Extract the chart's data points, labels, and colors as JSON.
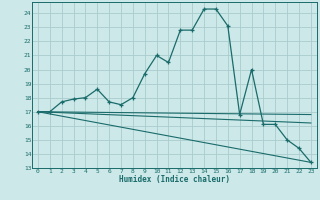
{
  "xlabel": "Humidex (Indice chaleur)",
  "background_color": "#cce8e8",
  "grid_color": "#aacccc",
  "line_color": "#1a6b6b",
  "xlim": [
    -0.5,
    23.5
  ],
  "ylim": [
    13,
    24.8
  ],
  "yticks": [
    13,
    14,
    15,
    16,
    17,
    18,
    19,
    20,
    21,
    22,
    23,
    24
  ],
  "xticks": [
    0,
    1,
    2,
    3,
    4,
    5,
    6,
    7,
    8,
    9,
    10,
    11,
    12,
    13,
    14,
    15,
    16,
    17,
    18,
    19,
    20,
    21,
    22,
    23
  ],
  "curve1_x": [
    0,
    1,
    2,
    3,
    4,
    5,
    6,
    7,
    8,
    9,
    10,
    11,
    12,
    13,
    14,
    15,
    16,
    17,
    18,
    19,
    20,
    21,
    22,
    23
  ],
  "curve1_y": [
    17.0,
    17.0,
    17.7,
    17.9,
    18.0,
    18.6,
    17.7,
    17.5,
    18.0,
    19.7,
    21.0,
    20.5,
    22.8,
    22.8,
    24.3,
    24.3,
    23.1,
    16.8,
    20.0,
    16.1,
    16.1,
    15.0,
    14.4,
    13.4
  ],
  "curve2_x": [
    0,
    23
  ],
  "curve2_y": [
    17.0,
    16.8
  ],
  "curve3_x": [
    0,
    23
  ],
  "curve3_y": [
    17.0,
    13.4
  ],
  "curve4_x": [
    0,
    23
  ],
  "curve4_y": [
    17.0,
    16.2
  ]
}
